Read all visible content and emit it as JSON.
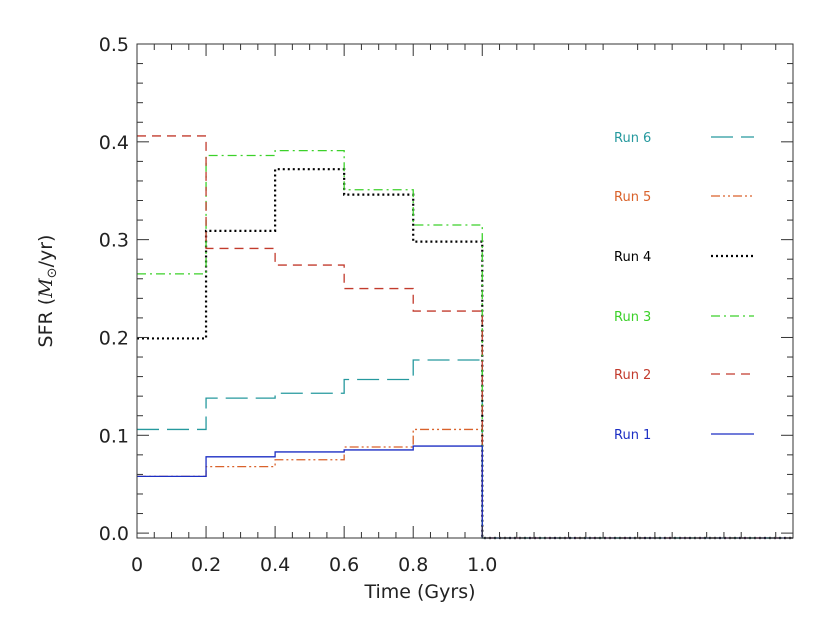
{
  "chart_data": {
    "type": "line",
    "step": true,
    "xlabel": "Time (Gyrs)",
    "ylabel_prefix": "SFR (",
    "ylabel_math": "M",
    "ylabel_sub": "⊙",
    "ylabel_suffix": "/yr)",
    "xlim": [
      0,
      1.9
    ],
    "ylim": [
      -0.005,
      0.5
    ],
    "x_ticks": [
      "0",
      "0.2",
      "0.4",
      "0.6",
      "0.8",
      "1.0"
    ],
    "x_tick_values": [
      0,
      0.2,
      0.4,
      0.6,
      0.8,
      1.0
    ],
    "y_ticks": [
      "0.0",
      "0.1",
      "0.2",
      "0.3",
      "0.4",
      "0.5"
    ],
    "y_tick_values": [
      0,
      0.1,
      0.2,
      0.3,
      0.4,
      0.5
    ],
    "grid": false,
    "legend_position": "right",
    "bin_edges": [
      0,
      0.2,
      0.4,
      0.6,
      0.8,
      1.0,
      1.9
    ],
    "series": [
      {
        "name": "Run 6",
        "color": "#26999e",
        "dash": "long-dash",
        "values": [
          0.106,
          0.138,
          0.143,
          0.157,
          0.177,
          -0.005
        ]
      },
      {
        "name": "Run 5",
        "color": "#d9622b",
        "dash": "dash-dot-dot",
        "values": [
          0.058,
          0.068,
          0.075,
          0.088,
          0.106,
          -0.005
        ]
      },
      {
        "name": "Run 4",
        "color": "#000000",
        "dash": "dotted",
        "values": [
          0.199,
          0.309,
          0.372,
          0.346,
          0.298,
          -0.005
        ]
      },
      {
        "name": "Run 3",
        "color": "#3cd12a",
        "dash": "dash-dot",
        "values": [
          0.265,
          0.386,
          0.391,
          0.351,
          0.315,
          -0.005
        ]
      },
      {
        "name": "Run 2",
        "color": "#c23b2d",
        "dash": "dashed",
        "values": [
          0.406,
          0.291,
          0.274,
          0.25,
          0.227,
          -0.005
        ]
      },
      {
        "name": "Run 1",
        "color": "#1c2fc4",
        "dash": "solid",
        "values": [
          0.058,
          0.078,
          0.083,
          0.085,
          0.089,
          -0.005
        ]
      }
    ]
  }
}
